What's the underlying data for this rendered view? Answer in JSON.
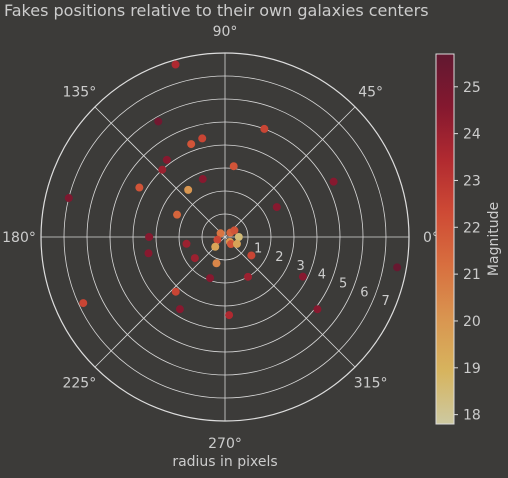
{
  "chart_data": {
    "type": "scatter",
    "projection": "polar",
    "title": "Fakes positions relative to their own galaxies centers",
    "xlabel": "radius in pixels",
    "angle_ticks": [
      "0°",
      "45°",
      "90°",
      "135°",
      "180°",
      "225°",
      "270°",
      "315°"
    ],
    "radius_ticks": [
      "1",
      "2",
      "3",
      "4",
      "5",
      "6",
      "7"
    ],
    "rlim": [
      0,
      8
    ],
    "grid": true,
    "colorbar": {
      "label": "Magnitude",
      "range": [
        17.8,
        25.7
      ],
      "ticks": [
        "18",
        "19",
        "20",
        "21",
        "22",
        "23",
        "24",
        "25"
      ],
      "colormap": [
        "#cdc9a1",
        "#d7b45e",
        "#d99550",
        "#d86f3f",
        "#ce4a35",
        "#b12a30",
        "#84182f",
        "#611830"
      ]
    },
    "points": [
      {
        "theta": 39,
        "r": 0.3,
        "mag": 21.5
      },
      {
        "theta": 35,
        "r": 0.5,
        "mag": 22.0
      },
      {
        "theta": 140,
        "r": 0.25,
        "mag": 21.0
      },
      {
        "theta": 200,
        "r": 0.35,
        "mag": 22.5
      },
      {
        "theta": 315,
        "r": 0.3,
        "mag": 20.0
      },
      {
        "theta": 310,
        "r": 0.4,
        "mag": 22.0
      },
      {
        "theta": 0,
        "r": 0.6,
        "mag": 18.5
      },
      {
        "theta": 330,
        "r": 0.6,
        "mag": 19.5
      },
      {
        "theta": 225,
        "r": 0.6,
        "mag": 19.5
      },
      {
        "theta": 252,
        "r": 1.2,
        "mag": 20.5
      },
      {
        "theta": 325,
        "r": 1.4,
        "mag": 22.5
      },
      {
        "theta": 215,
        "r": 1.6,
        "mag": 24.0
      },
      {
        "theta": 250,
        "r": 1.9,
        "mag": 24.5
      },
      {
        "theta": 300,
        "r": 2.0,
        "mag": 24.0
      },
      {
        "theta": 155,
        "r": 2.3,
        "mag": 21.5
      },
      {
        "theta": 190,
        "r": 1.7,
        "mag": 24.0
      },
      {
        "theta": 273,
        "r": 3.4,
        "mag": 23.5
      },
      {
        "theta": 192,
        "r": 3.4,
        "mag": 24.5
      },
      {
        "theta": 30,
        "r": 2.6,
        "mag": 24.5
      },
      {
        "theta": 83,
        "r": 3.1,
        "mag": 22.0
      },
      {
        "theta": 128,
        "r": 2.6,
        "mag": 20.0
      },
      {
        "theta": 111,
        "r": 2.7,
        "mag": 24.5
      },
      {
        "theta": 228,
        "r": 3.2,
        "mag": 22.5
      },
      {
        "theta": 238,
        "r": 3.7,
        "mag": 24.5
      },
      {
        "theta": 180,
        "r": 3.3,
        "mag": 24.5
      },
      {
        "theta": 133,
        "r": 4.0,
        "mag": 24.0
      },
      {
        "theta": 127,
        "r": 4.2,
        "mag": 24.5
      },
      {
        "theta": 110,
        "r": 4.3,
        "mag": 22.0
      },
      {
        "theta": 103,
        "r": 4.4,
        "mag": 22.5
      },
      {
        "theta": 150,
        "r": 4.3,
        "mag": 22.0
      },
      {
        "theta": 70,
        "r": 5.0,
        "mag": 22.5
      },
      {
        "theta": 27,
        "r": 5.3,
        "mag": 24.5
      },
      {
        "theta": 333,
        "r": 3.8,
        "mag": 24.5
      },
      {
        "theta": 322,
        "r": 5.1,
        "mag": 24.5
      },
      {
        "theta": 120,
        "r": 5.8,
        "mag": 25.2
      },
      {
        "theta": 106,
        "r": 7.8,
        "mag": 23.5
      },
      {
        "theta": 166,
        "r": 7.0,
        "mag": 24.8
      },
      {
        "theta": 205,
        "r": 6.8,
        "mag": 22.5
      },
      {
        "theta": 350,
        "r": 7.6,
        "mag": 25.5
      }
    ]
  }
}
